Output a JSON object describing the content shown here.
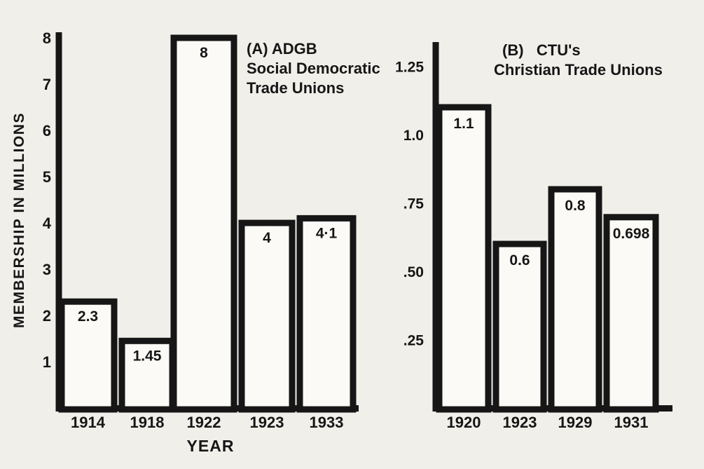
{
  "colors": {
    "background": "#f0efea",
    "ink": "#161616",
    "bar_fill": "#fbfaf6"
  },
  "chart_data": [
    {
      "type": "bar",
      "title_lines": [
        "(A) ADGB",
        "Social Democratic",
        "Trade Unions"
      ],
      "categories": [
        "1914",
        "1918",
        "1922",
        "1923",
        "1933"
      ],
      "values": [
        2.3,
        1.45,
        8,
        4,
        4.1
      ],
      "value_labels": [
        "2.3",
        "1.45",
        "8",
        "4",
        "4·1"
      ],
      "ylabel": "MEMBERSHIP IN MILLIONS",
      "xlabel": "YEAR",
      "yticks": [
        1,
        2,
        3,
        4,
        5,
        6,
        7,
        8
      ],
      "ytick_labels": [
        "1",
        "2",
        "3",
        "4",
        "5",
        "6",
        "7",
        "8"
      ],
      "ylim": [
        0,
        8.1
      ],
      "grid": false,
      "legend": "none"
    },
    {
      "type": "bar",
      "title_lines": [
        "(B)   CTU's",
        "Christian Trade Unions"
      ],
      "categories": [
        "1920",
        "1923",
        "1929",
        "1931"
      ],
      "values": [
        1.1,
        0.6,
        0.8,
        0.698
      ],
      "value_labels": [
        "1.1",
        "0.6",
        "0.8",
        "0.698"
      ],
      "ylabel": "",
      "xlabel": "",
      "yticks": [
        0.25,
        0.5,
        0.75,
        1.0,
        1.25
      ],
      "ytick_labels": [
        ".25",
        ".50",
        ".75",
        "1.0",
        "1.25"
      ],
      "ylim": [
        0,
        1.34
      ],
      "grid": false,
      "legend": "none"
    }
  ]
}
